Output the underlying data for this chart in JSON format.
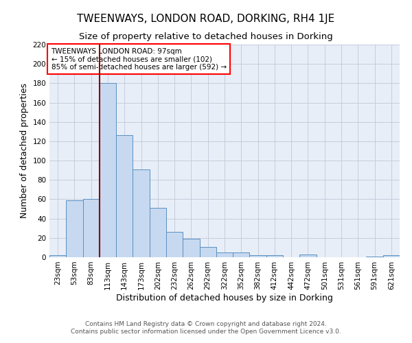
{
  "title": "TWEENWAYS, LONDON ROAD, DORKING, RH4 1JE",
  "subtitle": "Size of property relative to detached houses in Dorking",
  "xlabel": "Distribution of detached houses by size in Dorking",
  "ylabel": "Number of detached properties",
  "footnote1": "Contains HM Land Registry data © Crown copyright and database right 2024.",
  "footnote2": "Contains public sector information licensed under the Open Government Licence v3.0.",
  "annotation_line1": "TWEENWAYS LONDON ROAD: 97sqm",
  "annotation_line2": "← 15% of detached houses are smaller (102)",
  "annotation_line3": "85% of semi-detached houses are larger (592) →",
  "bar_labels": [
    "23sqm",
    "53sqm",
    "83sqm",
    "113sqm",
    "143sqm",
    "173sqm",
    "202sqm",
    "232sqm",
    "262sqm",
    "292sqm",
    "322sqm",
    "352sqm",
    "382sqm",
    "412sqm",
    "442sqm",
    "472sqm",
    "501sqm",
    "531sqm",
    "561sqm",
    "591sqm",
    "621sqm"
  ],
  "bar_values": [
    2,
    59,
    60,
    180,
    126,
    91,
    51,
    26,
    19,
    11,
    5,
    5,
    2,
    2,
    0,
    3,
    0,
    0,
    0,
    1,
    2
  ],
  "bar_color": "#c6d9f0",
  "bar_edge_color": "#5a8fc0",
  "red_line_index": 2.5,
  "ylim": [
    0,
    220
  ],
  "yticks": [
    0,
    20,
    40,
    60,
    80,
    100,
    120,
    140,
    160,
    180,
    200,
    220
  ],
  "background_color": "#e8eef7",
  "grid_color": "#c0c8d8",
  "title_fontsize": 11,
  "subtitle_fontsize": 9.5,
  "axis_label_fontsize": 9,
  "tick_fontsize": 7.5,
  "annotation_fontsize": 7.5,
  "footnote_fontsize": 6.5
}
